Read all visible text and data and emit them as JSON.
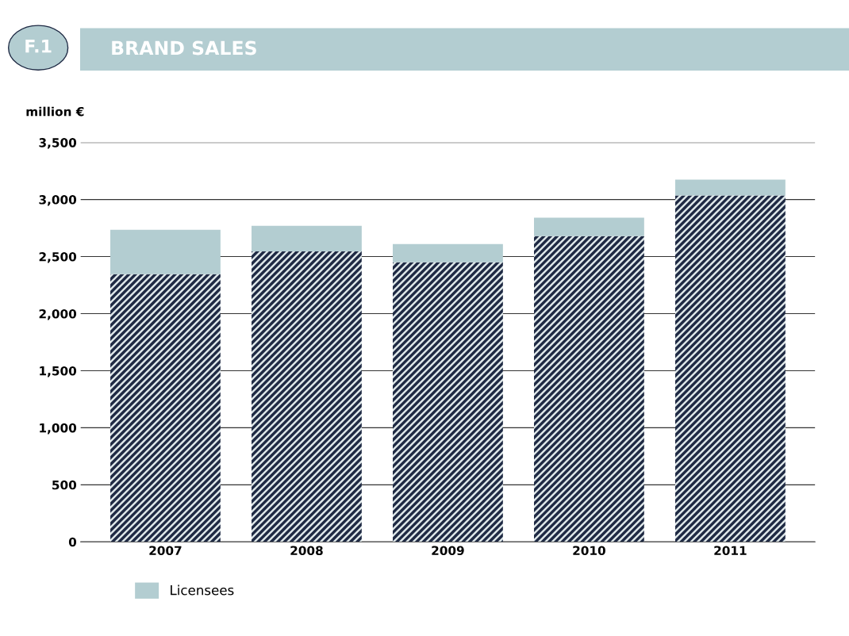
{
  "chart_data": {
    "type": "bar",
    "title": "BRAND SALES",
    "annotations": [
      "F.1"
    ],
    "ylabel": "million €",
    "categories": [
      "2007",
      "2008",
      "2009",
      "2010",
      "2011"
    ],
    "stacked": true,
    "series": [
      {
        "color": "#1f2a44",
        "values": [
          2345,
          2545,
          2450,
          2680,
          3035
        ]
      },
      {
        "name": "Licensees",
        "color": "#b3cdd1",
        "values": [
          390,
          225,
          160,
          160,
          140
        ]
      }
    ],
    "ylim": [
      0,
      3500
    ],
    "yticks": [
      {
        "value": 0,
        "label": "0"
      },
      {
        "value": 500,
        "label": "500"
      },
      {
        "value": 1000,
        "label": "1,000"
      },
      {
        "value": 1500,
        "label": "1,500"
      },
      {
        "value": 2000,
        "label": "2,000"
      },
      {
        "value": 2500,
        "label": "2,500"
      },
      {
        "value": 3000,
        "label": "3,000"
      },
      {
        "value": 3500,
        "label": "3,500"
      }
    ],
    "grid": "y",
    "legend": "bottom left"
  }
}
